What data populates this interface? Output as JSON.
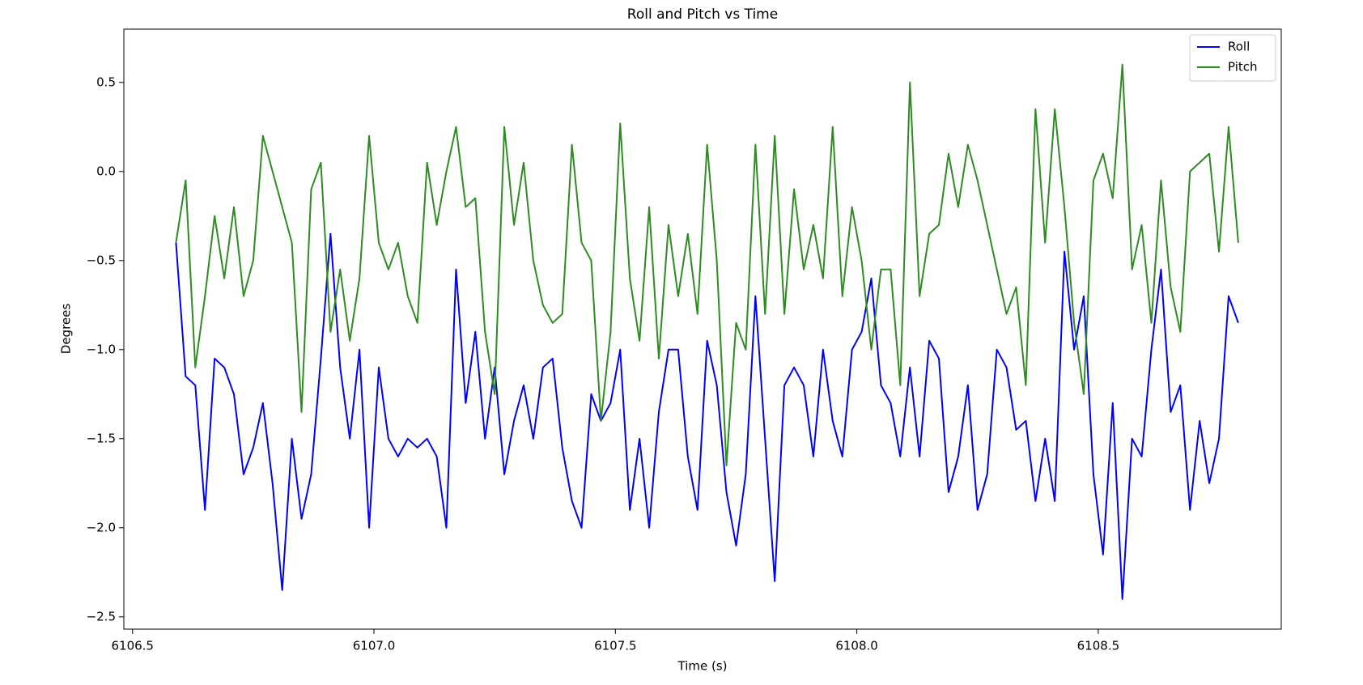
{
  "chart_data": {
    "type": "line",
    "title": "Roll and Pitch vs Time",
    "xlabel": "Time (s)",
    "ylabel": "Degrees",
    "xlim": [
      6106.482,
      6108.879
    ],
    "ylim": [
      -2.569,
      0.799
    ],
    "xticks": [
      {
        "value": 6106.5,
        "label": "6106.5"
      },
      {
        "value": 6107.0,
        "label": "6107.0"
      },
      {
        "value": 6107.5,
        "label": "6107.5"
      },
      {
        "value": 6108.0,
        "label": "6108.0"
      },
      {
        "value": 6108.5,
        "label": "6108.5"
      }
    ],
    "yticks": [
      {
        "value": 0.5,
        "label": "0.5"
      },
      {
        "value": 0.0,
        "label": "0.0"
      },
      {
        "value": -0.5,
        "label": "−0.5"
      },
      {
        "value": -1.0,
        "label": "−1.0"
      },
      {
        "value": -1.5,
        "label": "−1.5"
      },
      {
        "value": -2.0,
        "label": "−2.0"
      },
      {
        "value": -2.5,
        "label": "−2.5"
      }
    ],
    "grid": false,
    "legend": "upper right",
    "x": [
      6106.59,
      6106.61,
      6106.63,
      6106.65,
      6106.67,
      6106.69,
      6106.71,
      6106.73,
      6106.75,
      6106.77,
      6106.79,
      6106.81,
      6106.83,
      6106.85,
      6106.87,
      6106.89,
      6106.91,
      6106.93,
      6106.95,
      6106.97,
      6106.99,
      6107.01,
      6107.03,
      6107.05,
      6107.07,
      6107.09,
      6107.11,
      6107.13,
      6107.15,
      6107.17,
      6107.19,
      6107.21,
      6107.23,
      6107.25,
      6107.27,
      6107.29,
      6107.31,
      6107.33,
      6107.35,
      6107.37,
      6107.39,
      6107.41,
      6107.43,
      6107.45,
      6107.47,
      6107.49,
      6107.51,
      6107.53,
      6107.55,
      6107.57,
      6107.59,
      6107.61,
      6107.63,
      6107.65,
      6107.67,
      6107.69,
      6107.71,
      6107.73,
      6107.75,
      6107.77,
      6107.79,
      6107.81,
      6107.83,
      6107.85,
      6107.87,
      6107.89,
      6107.91,
      6107.93,
      6107.95,
      6107.97,
      6107.99,
      6108.01,
      6108.03,
      6108.05,
      6108.07,
      6108.09,
      6108.11,
      6108.13,
      6108.15,
      6108.17,
      6108.19,
      6108.21,
      6108.23,
      6108.25,
      6108.27,
      6108.29,
      6108.31,
      6108.33,
      6108.35,
      6108.37,
      6108.39,
      6108.41,
      6108.43,
      6108.45,
      6108.47,
      6108.49,
      6108.51,
      6108.53,
      6108.55,
      6108.57,
      6108.59,
      6108.61,
      6108.63,
      6108.65,
      6108.67,
      6108.69,
      6108.71,
      6108.73,
      6108.75,
      6108.77,
      6108.79
    ],
    "series": [
      {
        "name": "Roll",
        "color": "#0000ff",
        "values": [
          -0.4,
          -1.15,
          -1.2,
          -1.9,
          -1.05,
          -1.1,
          -1.25,
          -1.7,
          -1.55,
          -1.3,
          -1.75,
          -2.35,
          -1.5,
          -1.95,
          -1.7,
          -1.05,
          -0.35,
          -1.1,
          -1.5,
          -1.0,
          -2.0,
          -1.1,
          -1.5,
          -1.6,
          -1.5,
          -1.55,
          -1.5,
          -1.6,
          -2.0,
          -0.55,
          -1.3,
          -0.9,
          -1.5,
          -1.1,
          -1.7,
          -1.4,
          -1.2,
          -1.5,
          -1.1,
          -1.05,
          -1.55,
          -1.85,
          -2.0,
          -1.25,
          -1.4,
          -1.3,
          -1.0,
          -1.9,
          -1.5,
          -2.0,
          -1.35,
          -1.0,
          -1.0,
          -1.6,
          -1.9,
          -0.95,
          -1.2,
          -1.8,
          -2.1,
          -1.7,
          -0.7,
          -1.5,
          -2.3,
          -1.2,
          -1.1,
          -1.2,
          -1.6,
          -1.0,
          -1.4,
          -1.6,
          -1.0,
          -0.9,
          -0.6,
          -1.2,
          -1.3,
          -1.6,
          -1.1,
          -1.6,
          -0.95,
          -1.05,
          -1.8,
          -1.6,
          -1.2,
          -1.9,
          -1.7,
          -1.0,
          -1.1,
          -1.45,
          -1.4,
          -1.85,
          -1.5,
          -1.85,
          -0.45,
          -1.0,
          -0.7,
          -1.7,
          -2.15,
          -1.3,
          -2.4,
          -1.5,
          -1.6,
          -1.0,
          -0.55,
          -1.35,
          -1.2,
          -1.9,
          -1.4,
          -1.75,
          -1.5,
          -0.7,
          -0.85
        ]
      },
      {
        "name": "Pitch",
        "color": "#2e8b22",
        "values": [
          -0.4,
          -0.05,
          -1.1,
          -0.7,
          -0.25,
          -0.6,
          -0.2,
          -0.7,
          -0.5,
          0.2,
          0.0,
          -0.2,
          -0.4,
          -1.35,
          -0.1,
          0.05,
          -0.9,
          -0.55,
          -0.95,
          -0.6,
          0.2,
          -0.4,
          -0.55,
          -0.4,
          -0.7,
          -0.85,
          0.05,
          -0.3,
          0.0,
          0.25,
          -0.2,
          -0.15,
          -0.9,
          -1.25,
          0.25,
          -0.3,
          0.05,
          -0.5,
          -0.75,
          -0.85,
          -0.8,
          0.15,
          -0.4,
          -0.5,
          -1.4,
          -0.9,
          0.27,
          -0.6,
          -0.95,
          -0.2,
          -1.05,
          -0.3,
          -0.7,
          -0.35,
          -0.8,
          0.15,
          -0.5,
          -1.65,
          -0.85,
          -1.0,
          0.15,
          -0.8,
          0.2,
          -0.8,
          -0.1,
          -0.55,
          -0.3,
          -0.6,
          0.25,
          -0.7,
          -0.2,
          -0.5,
          -1.0,
          -0.55,
          -0.55,
          -1.2,
          0.5,
          -0.7,
          -0.35,
          -0.3,
          0.1,
          -0.2,
          0.15,
          -0.05,
          -0.3,
          -0.55,
          -0.8,
          -0.65,
          -1.2,
          0.35,
          -0.4,
          0.35,
          -0.2,
          -0.85,
          -1.25,
          -0.05,
          0.1,
          -0.15,
          0.6,
          -0.55,
          -0.3,
          -0.85,
          -0.05,
          -0.65,
          -0.9,
          0.0,
          0.05,
          0.1,
          -0.45,
          0.25,
          -0.4
        ]
      }
    ]
  }
}
